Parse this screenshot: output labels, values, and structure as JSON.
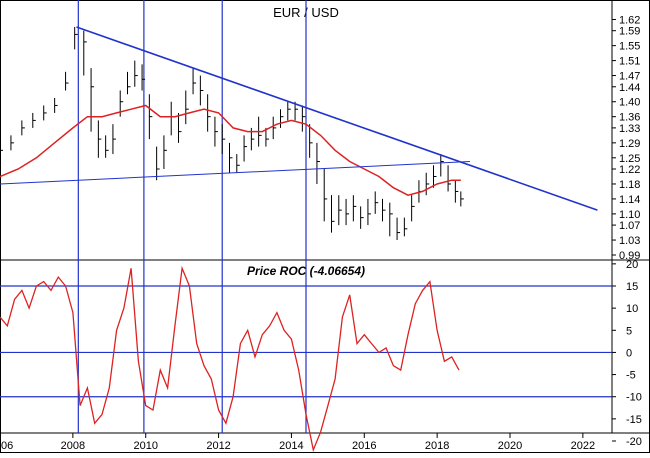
{
  "chart_data": [
    {
      "type": "line",
      "panel": "price",
      "title": "EUR / USD",
      "ylim": [
        0.99,
        1.64
      ],
      "xlim": [
        2006,
        2022.8
      ],
      "y_ticks": [
        1.62,
        1.59,
        1.55,
        1.51,
        1.47,
        1.44,
        1.4,
        1.36,
        1.33,
        1.29,
        1.25,
        1.22,
        1.18,
        1.14,
        1.1,
        1.07,
        1.03,
        0.99
      ],
      "x_ticks": [
        "06",
        "2008",
        "2010",
        "2012",
        "2014",
        "2016",
        "2018",
        "2020",
        "2022"
      ],
      "x_tick_values": [
        2006,
        2008,
        2010,
        2012,
        2014,
        2016,
        2018,
        2020,
        2022
      ],
      "vertical_markers": [
        2008.15,
        2009.95,
        2012.1,
        2014.4
      ],
      "series": [
        {
          "kind": "price-bars",
          "color": "#000000",
          "x": [
            2006.0,
            2006.3,
            2006.6,
            2006.9,
            2007.2,
            2007.5,
            2007.8,
            2008.05,
            2008.3,
            2008.5,
            2008.7,
            2008.9,
            2009.1,
            2009.3,
            2009.5,
            2009.7,
            2009.9,
            2010.1,
            2010.3,
            2010.5,
            2010.7,
            2010.9,
            2011.1,
            2011.3,
            2011.5,
            2011.7,
            2011.9,
            2012.1,
            2012.3,
            2012.5,
            2012.7,
            2012.9,
            2013.1,
            2013.3,
            2013.5,
            2013.7,
            2013.9,
            2014.1,
            2014.3,
            2014.5,
            2014.7,
            2014.9,
            2015.1,
            2015.3,
            2015.5,
            2015.7,
            2015.9,
            2016.1,
            2016.3,
            2016.5,
            2016.7,
            2016.9,
            2017.1,
            2017.3,
            2017.5,
            2017.7,
            2017.9,
            2018.1,
            2018.3,
            2018.5,
            2018.65
          ],
          "close": [
            1.27,
            1.29,
            1.33,
            1.35,
            1.37,
            1.39,
            1.45,
            1.58,
            1.56,
            1.44,
            1.3,
            1.27,
            1.3,
            1.4,
            1.44,
            1.47,
            1.46,
            1.36,
            1.22,
            1.27,
            1.36,
            1.32,
            1.38,
            1.45,
            1.43,
            1.36,
            1.32,
            1.3,
            1.25,
            1.23,
            1.28,
            1.3,
            1.31,
            1.3,
            1.33,
            1.36,
            1.38,
            1.38,
            1.36,
            1.29,
            1.24,
            1.14,
            1.08,
            1.11,
            1.1,
            1.12,
            1.09,
            1.1,
            1.13,
            1.11,
            1.1,
            1.05,
            1.06,
            1.12,
            1.16,
            1.18,
            1.2,
            1.24,
            1.18,
            1.16,
            1.14
          ],
          "high": [
            1.29,
            1.31,
            1.35,
            1.37,
            1.39,
            1.41,
            1.48,
            1.6,
            1.59,
            1.49,
            1.35,
            1.31,
            1.34,
            1.43,
            1.48,
            1.51,
            1.5,
            1.42,
            1.28,
            1.31,
            1.4,
            1.37,
            1.43,
            1.49,
            1.47,
            1.42,
            1.36,
            1.34,
            1.29,
            1.26,
            1.31,
            1.33,
            1.36,
            1.33,
            1.36,
            1.38,
            1.4,
            1.4,
            1.39,
            1.34,
            1.29,
            1.22,
            1.15,
            1.15,
            1.14,
            1.15,
            1.12,
            1.14,
            1.16,
            1.14,
            1.13,
            1.09,
            1.09,
            1.15,
            1.19,
            1.21,
            1.23,
            1.26,
            1.23,
            1.19,
            1.16
          ],
          "low": [
            1.25,
            1.27,
            1.31,
            1.33,
            1.35,
            1.37,
            1.43,
            1.54,
            1.47,
            1.32,
            1.25,
            1.25,
            1.26,
            1.36,
            1.42,
            1.44,
            1.43,
            1.3,
            1.19,
            1.22,
            1.31,
            1.29,
            1.34,
            1.42,
            1.39,
            1.32,
            1.28,
            1.26,
            1.21,
            1.21,
            1.24,
            1.27,
            1.28,
            1.28,
            1.3,
            1.33,
            1.35,
            1.35,
            1.32,
            1.25,
            1.18,
            1.08,
            1.05,
            1.07,
            1.07,
            1.08,
            1.06,
            1.07,
            1.1,
            1.08,
            1.04,
            1.03,
            1.04,
            1.08,
            1.13,
            1.15,
            1.17,
            1.2,
            1.16,
            1.13,
            1.12
          ]
        },
        {
          "kind": "moving-average",
          "color": "#dd2222",
          "x": [
            2006.0,
            2006.5,
            2007.0,
            2007.5,
            2008.0,
            2008.4,
            2008.8,
            2009.2,
            2009.6,
            2010.0,
            2010.4,
            2010.8,
            2011.2,
            2011.6,
            2012.0,
            2012.4,
            2012.8,
            2013.2,
            2013.6,
            2014.0,
            2014.4,
            2014.8,
            2015.2,
            2015.6,
            2016.0,
            2016.4,
            2016.8,
            2017.2,
            2017.6,
            2018.0,
            2018.4,
            2018.65
          ],
          "y": [
            1.2,
            1.22,
            1.25,
            1.29,
            1.33,
            1.36,
            1.36,
            1.37,
            1.38,
            1.39,
            1.36,
            1.36,
            1.37,
            1.38,
            1.37,
            1.33,
            1.32,
            1.32,
            1.34,
            1.35,
            1.34,
            1.31,
            1.27,
            1.24,
            1.22,
            1.2,
            1.17,
            1.15,
            1.16,
            1.18,
            1.19,
            1.19
          ]
        },
        {
          "kind": "trendline-upper",
          "color": "#2233cc",
          "x": [
            2008.1,
            2022.4
          ],
          "y": [
            1.6,
            1.11
          ]
        },
        {
          "kind": "trendline-lower",
          "color": "#2233cc",
          "x": [
            2006.0,
            2018.9
          ],
          "y": [
            1.18,
            1.24
          ]
        }
      ]
    },
    {
      "type": "line",
      "panel": "roc",
      "title": "Price ROC (-4.06654)",
      "ylim": [
        -22,
        21
      ],
      "xlim": [
        2006,
        2022.8
      ],
      "y_ticks": [
        20,
        15,
        10,
        5,
        0,
        -5,
        -10,
        -15,
        -20
      ],
      "horizontal_markers": [
        15,
        0,
        -10
      ],
      "series": [
        {
          "kind": "roc",
          "color": "#dd2222",
          "x": [
            2006.0,
            2006.2,
            2006.4,
            2006.6,
            2006.8,
            2007.0,
            2007.2,
            2007.4,
            2007.6,
            2007.8,
            2008.0,
            2008.2,
            2008.4,
            2008.6,
            2008.8,
            2009.0,
            2009.2,
            2009.4,
            2009.6,
            2009.8,
            2010.0,
            2010.2,
            2010.4,
            2010.6,
            2010.8,
            2011.0,
            2011.2,
            2011.4,
            2011.6,
            2011.8,
            2012.0,
            2012.2,
            2012.4,
            2012.6,
            2012.8,
            2013.0,
            2013.2,
            2013.4,
            2013.6,
            2013.8,
            2014.0,
            2014.2,
            2014.4,
            2014.6,
            2014.8,
            2015.0,
            2015.2,
            2015.4,
            2015.6,
            2015.8,
            2016.0,
            2016.2,
            2016.4,
            2016.6,
            2016.8,
            2017.0,
            2017.2,
            2017.4,
            2017.6,
            2017.8,
            2018.0,
            2018.2,
            2018.4,
            2018.6
          ],
          "y": [
            8,
            6,
            12,
            14,
            10,
            15,
            16,
            14,
            17,
            15,
            9,
            -12,
            -8,
            -16,
            -14,
            -8,
            5,
            10,
            19,
            -2,
            -12,
            -13,
            -4,
            -8,
            6,
            19,
            15,
            2,
            -3,
            -6,
            -13,
            -16,
            -10,
            2,
            5,
            -1,
            4,
            6,
            9,
            5,
            3,
            -4,
            -14,
            -22,
            -18,
            -12,
            -6,
            8,
            13,
            2,
            4,
            2,
            0,
            1,
            -3,
            -4,
            4,
            11,
            14,
            16,
            5,
            -2,
            -1,
            -4
          ]
        }
      ]
    }
  ]
}
